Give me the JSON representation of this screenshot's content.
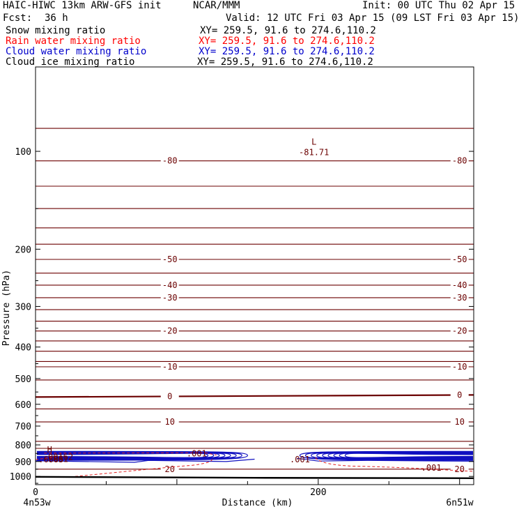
{
  "header": {
    "model": "HAIC-HIWC 13km ARW-GFS init",
    "center": "NCAR/MMM",
    "init": "Init: 00 UTC Thu 02 Apr 15",
    "fcst_label": "Fcst:",
    "fcst_value": "36 h",
    "valid": "Valid: 12 UTC Fri 03 Apr 15 (09 LST Fri 03 Apr 15)"
  },
  "fields": [
    {
      "name": "Snow mixing ratio",
      "xy": "XY= 259.5, 91.6 to 274.6,110.2",
      "color": "#000000"
    },
    {
      "name": "Rain water mixing ratio",
      "xy": "XY= 259.5, 91.6 to 274.6,110.2",
      "color": "#ff0000"
    },
    {
      "name": "Cloud water mixing ratio",
      "xy": "XY= 259.5, 91.6 to 274.6,110.2",
      "color": "#0000cc"
    },
    {
      "name": "Cloud ice mixing ratio",
      "xy": "XY= 259.5, 91.6 to 274.6,110.2",
      "color": "#000000"
    }
  ],
  "colors": {
    "temperature": "#6b0000",
    "rain": "#e02020",
    "cloud_water": "#1010c0",
    "ground": "#000000"
  },
  "chart_data": {
    "type": "cross-section contour",
    "xlabel": "Distance (km)",
    "ylabel": "Pressure (hPa)",
    "xlim": [
      0,
      310
    ],
    "ylim": [
      1060,
      55
    ],
    "y_scale": "log",
    "x_ticks": [
      0,
      200
    ],
    "y_ticks": [
      100,
      200,
      300,
      400,
      500,
      600,
      700,
      800,
      900,
      1000
    ],
    "x_end_labels": [
      "4n53w",
      "6n51w"
    ],
    "temperature_levels": [
      {
        "p": 85,
        "label": ""
      },
      {
        "p": 107,
        "label": "-80"
      },
      {
        "p": 128,
        "label": ""
      },
      {
        "p": 150,
        "label": ""
      },
      {
        "p": 172,
        "label": ""
      },
      {
        "p": 193,
        "label": ""
      },
      {
        "p": 215,
        "label": "-50"
      },
      {
        "p": 237,
        "label": ""
      },
      {
        "p": 258,
        "label": "-40"
      },
      {
        "p": 282,
        "label": "-30"
      },
      {
        "p": 307,
        "label": ""
      },
      {
        "p": 333,
        "label": ""
      },
      {
        "p": 357,
        "label": "-20"
      },
      {
        "p": 383,
        "label": ""
      },
      {
        "p": 412,
        "label": ""
      },
      {
        "p": 443,
        "label": ""
      },
      {
        "p": 460,
        "label": "-10"
      },
      {
        "p": 505,
        "label": ""
      },
      {
        "p": 570,
        "label": "0"
      },
      {
        "p": 620,
        "label": ""
      },
      {
        "p": 680,
        "label": "10"
      },
      {
        "p": 780,
        "label": ""
      },
      {
        "p": 820,
        "label": ""
      },
      {
        "p": 950,
        "label": "20"
      }
    ],
    "temperature_label_x": [
      95,
      300
    ],
    "extrema": [
      {
        "type": "L",
        "x": 197,
        "p": 95,
        "value": "-81.71"
      }
    ],
    "cloud_water_extrema": [
      {
        "type": "H",
        "x": 10,
        "p": 862,
        "value": ".6885"
      }
    ],
    "cloud_water_labels": [
      ".001",
      ".001"
    ],
    "rain_labels": [
      ".001",
      ".00162",
      ".001"
    ],
    "ground_pressure": [
      1003,
      1010,
      1013
    ]
  }
}
